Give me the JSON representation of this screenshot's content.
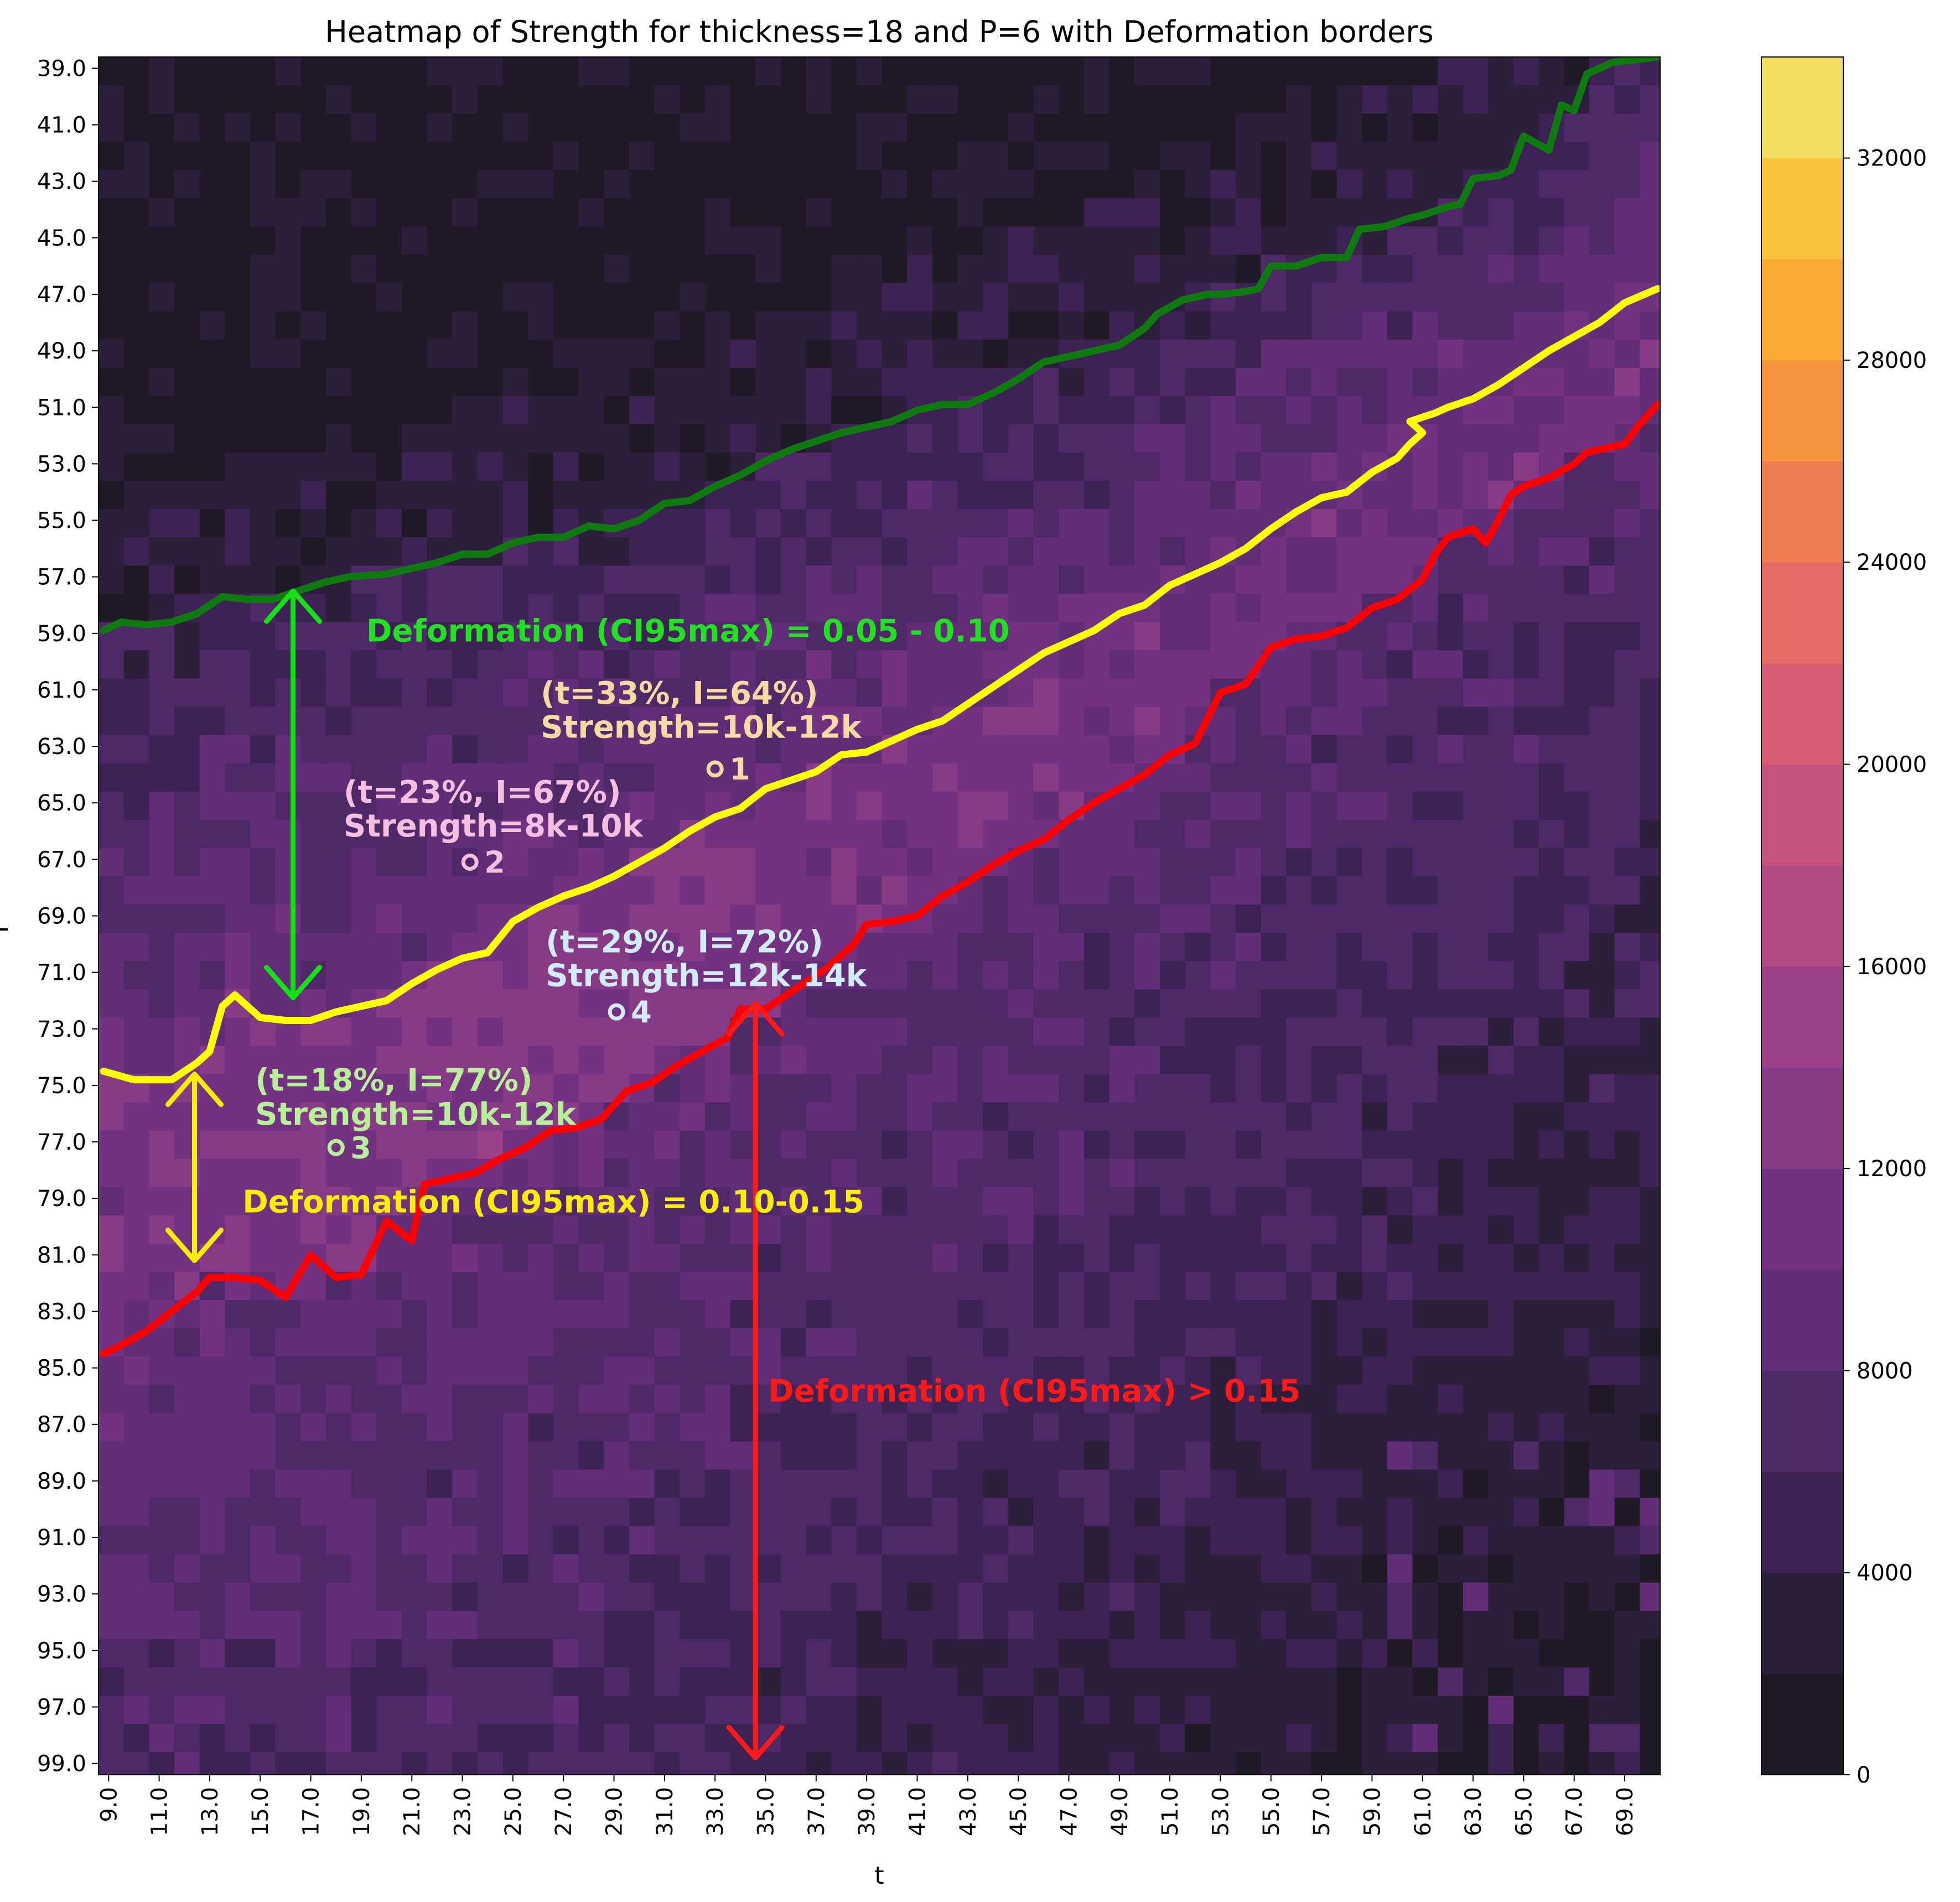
{
  "chart_data": {
    "type": "heatmap",
    "title": "Heatmap of Strength for thickness=18 and P=6 with Deformation borders",
    "xlabel": "t",
    "ylabel": "I",
    "x_ticks": [
      "9.0",
      "11.0",
      "13.0",
      "15.0",
      "17.0",
      "19.0",
      "21.0",
      "23.0",
      "25.0",
      "27.0",
      "29.0",
      "31.0",
      "33.0",
      "35.0",
      "37.0",
      "39.0",
      "41.0",
      "43.0",
      "45.0",
      "47.0",
      "49.0",
      "51.0",
      "53.0",
      "55.0",
      "57.0",
      "59.0",
      "61.0",
      "63.0",
      "65.0",
      "67.0",
      "69.0"
    ],
    "y_ticks": [
      "39.0",
      "41.0",
      "43.0",
      "45.0",
      "47.0",
      "49.0",
      "51.0",
      "53.0",
      "55.0",
      "57.0",
      "59.0",
      "61.0",
      "63.0",
      "65.0",
      "67.0",
      "69.0",
      "71.0",
      "73.0",
      "75.0",
      "77.0",
      "79.0",
      "81.0",
      "83.0",
      "85.0",
      "87.0",
      "89.0",
      "91.0",
      "93.0",
      "95.0",
      "97.0",
      "99.0"
    ],
    "xlim": [
      8.6,
      70.4
    ],
    "ylim": [
      38.6,
      99.4
    ],
    "colorbar": {
      "ticks": [
        "0",
        "4000",
        "8000",
        "12000",
        "16000",
        "20000",
        "24000",
        "28000",
        "32000"
      ],
      "range": [
        0,
        34000
      ],
      "levels": [
        0,
        2000,
        4000,
        6000,
        8000,
        10000,
        12000,
        14000,
        16000,
        18000,
        20000,
        22000,
        24000,
        26000,
        28000,
        30000,
        32000,
        34000
      ],
      "colors": [
        "#1f1a26",
        "#2b1f3b",
        "#3c2353",
        "#4f2868",
        "#612d77",
        "#733281",
        "#873a86",
        "#9c4188",
        "#b24a85",
        "#c6527e",
        "#d85d72",
        "#e66c63",
        "#ef7d52",
        "#f6933d",
        "#f9ab31",
        "#f8c43e",
        "#f3de61",
        "#f0f596"
      ]
    },
    "borders": [
      {
        "name": "green",
        "color": "#0f7a0f",
        "points": [
          [
            8.8,
            58.9
          ],
          [
            9.5,
            58.6
          ],
          [
            10.5,
            58.7
          ],
          [
            11.5,
            58.6
          ],
          [
            12.5,
            58.3
          ],
          [
            13.5,
            57.7
          ],
          [
            14.5,
            57.8
          ],
          [
            15.5,
            57.8
          ],
          [
            16.5,
            57.5
          ],
          [
            17.5,
            57.2
          ],
          [
            18.5,
            57.0
          ],
          [
            20.0,
            56.9
          ],
          [
            21.0,
            56.7
          ],
          [
            22.0,
            56.5
          ],
          [
            23.0,
            56.2
          ],
          [
            24.0,
            56.2
          ],
          [
            25.0,
            55.8
          ],
          [
            26.0,
            55.6
          ],
          [
            27.0,
            55.6
          ],
          [
            28.0,
            55.2
          ],
          [
            29.0,
            55.3
          ],
          [
            30.0,
            55.0
          ],
          [
            31.0,
            54.4
          ],
          [
            32.0,
            54.3
          ],
          [
            33.0,
            53.8
          ],
          [
            34.0,
            53.4
          ],
          [
            35.0,
            52.9
          ],
          [
            36.0,
            52.5
          ],
          [
            37.0,
            52.2
          ],
          [
            38.0,
            51.9
          ],
          [
            39.0,
            51.7
          ],
          [
            40.0,
            51.5
          ],
          [
            41.0,
            51.1
          ],
          [
            42.0,
            50.9
          ],
          [
            43.0,
            50.9
          ],
          [
            44.0,
            50.5
          ],
          [
            45.0,
            50.0
          ],
          [
            46.0,
            49.4
          ],
          [
            47.0,
            49.2
          ],
          [
            48.0,
            49.0
          ],
          [
            49.0,
            48.8
          ],
          [
            50.0,
            48.2
          ],
          [
            50.5,
            47.7
          ],
          [
            51.5,
            47.2
          ],
          [
            52.5,
            47.0
          ],
          [
            53.0,
            47.0
          ],
          [
            54.0,
            46.9
          ],
          [
            54.5,
            46.8
          ],
          [
            55.0,
            46.0
          ],
          [
            56.0,
            46.0
          ],
          [
            57.0,
            45.7
          ],
          [
            58.0,
            45.7
          ],
          [
            58.5,
            44.7
          ],
          [
            59.5,
            44.6
          ],
          [
            60.5,
            44.3
          ],
          [
            61.0,
            44.2
          ],
          [
            62.0,
            43.9
          ],
          [
            62.5,
            43.8
          ],
          [
            63.0,
            42.9
          ],
          [
            64.0,
            42.8
          ],
          [
            64.5,
            42.6
          ],
          [
            65.0,
            41.4
          ],
          [
            66.0,
            41.9
          ],
          [
            66.5,
            40.3
          ],
          [
            67.0,
            40.5
          ],
          [
            67.5,
            39.2
          ],
          [
            68.0,
            39.0
          ],
          [
            68.5,
            38.8
          ],
          [
            70.3,
            38.6
          ]
        ]
      },
      {
        "name": "yellow",
        "color": "#ffff00",
        "points": [
          [
            8.8,
            74.5
          ],
          [
            10.0,
            74.8
          ],
          [
            11.5,
            74.8
          ],
          [
            12.5,
            74.2
          ],
          [
            13.0,
            73.8
          ],
          [
            13.5,
            72.2
          ],
          [
            14.0,
            71.8
          ],
          [
            15.0,
            72.6
          ],
          [
            16.0,
            72.7
          ],
          [
            17.0,
            72.7
          ],
          [
            18.0,
            72.4
          ],
          [
            19.0,
            72.2
          ],
          [
            20.0,
            72.0
          ],
          [
            21.0,
            71.4
          ],
          [
            22.0,
            70.9
          ],
          [
            23.0,
            70.5
          ],
          [
            24.0,
            70.3
          ],
          [
            25.0,
            69.2
          ],
          [
            26.0,
            68.7
          ],
          [
            27.0,
            68.3
          ],
          [
            28.0,
            68.0
          ],
          [
            29.0,
            67.6
          ],
          [
            30.0,
            67.1
          ],
          [
            31.0,
            66.6
          ],
          [
            32.0,
            66.0
          ],
          [
            33.0,
            65.5
          ],
          [
            34.0,
            65.2
          ],
          [
            35.0,
            64.5
          ],
          [
            36.0,
            64.2
          ],
          [
            37.0,
            63.9
          ],
          [
            38.0,
            63.3
          ],
          [
            39.0,
            63.2
          ],
          [
            40.0,
            62.8
          ],
          [
            41.0,
            62.4
          ],
          [
            42.0,
            62.1
          ],
          [
            43.0,
            61.5
          ],
          [
            44.0,
            60.9
          ],
          [
            45.0,
            60.3
          ],
          [
            46.0,
            59.7
          ],
          [
            47.0,
            59.3
          ],
          [
            48.0,
            58.9
          ],
          [
            49.0,
            58.3
          ],
          [
            50.0,
            58.0
          ],
          [
            51.0,
            57.3
          ],
          [
            52.0,
            56.9
          ],
          [
            53.0,
            56.5
          ],
          [
            54.0,
            56.0
          ],
          [
            55.0,
            55.3
          ],
          [
            56.0,
            54.7
          ],
          [
            57.0,
            54.2
          ],
          [
            58.0,
            54.0
          ],
          [
            59.0,
            53.3
          ],
          [
            60.0,
            52.8
          ],
          [
            60.5,
            52.3
          ],
          [
            61.0,
            51.9
          ],
          [
            60.5,
            51.5
          ],
          [
            61.5,
            51.2
          ],
          [
            62.0,
            51.0
          ],
          [
            63.0,
            50.7
          ],
          [
            64.0,
            50.2
          ],
          [
            65.0,
            49.6
          ],
          [
            66.0,
            49.0
          ],
          [
            67.0,
            48.5
          ],
          [
            68.0,
            48.0
          ],
          [
            69.0,
            47.3
          ],
          [
            70.3,
            46.8
          ]
        ]
      },
      {
        "name": "red",
        "color": "#ff0000",
        "points": [
          [
            8.8,
            84.5
          ],
          [
            9.5,
            84.2
          ],
          [
            10.5,
            83.7
          ],
          [
            11.5,
            83.0
          ],
          [
            12.5,
            82.3
          ],
          [
            13.0,
            81.8
          ],
          [
            14.0,
            81.8
          ],
          [
            15.0,
            81.9
          ],
          [
            16.0,
            82.5
          ],
          [
            17.0,
            81.0
          ],
          [
            18.0,
            81.8
          ],
          [
            19.0,
            81.7
          ],
          [
            20.0,
            79.8
          ],
          [
            21.0,
            80.5
          ],
          [
            21.5,
            78.5
          ],
          [
            22.5,
            78.3
          ],
          [
            23.5,
            78.1
          ],
          [
            24.5,
            77.6
          ],
          [
            25.5,
            77.2
          ],
          [
            26.5,
            76.6
          ],
          [
            27.5,
            76.5
          ],
          [
            28.5,
            76.2
          ],
          [
            29.5,
            75.2
          ],
          [
            30.5,
            74.9
          ],
          [
            31.5,
            74.3
          ],
          [
            32.5,
            73.8
          ],
          [
            33.5,
            73.3
          ],
          [
            34.0,
            72.3
          ],
          [
            35.0,
            72.3
          ],
          [
            35.5,
            72.0
          ],
          [
            36.5,
            71.4
          ],
          [
            37.5,
            70.8
          ],
          [
            38.5,
            70.0
          ],
          [
            39.0,
            69.3
          ],
          [
            40.0,
            69.2
          ],
          [
            41.0,
            69.0
          ],
          [
            42.0,
            68.3
          ],
          [
            43.0,
            67.8
          ],
          [
            44.0,
            67.2
          ],
          [
            45.0,
            66.7
          ],
          [
            46.0,
            66.3
          ],
          [
            47.0,
            65.6
          ],
          [
            48.0,
            65.0
          ],
          [
            49.0,
            64.5
          ],
          [
            50.0,
            64.0
          ],
          [
            51.0,
            63.3
          ],
          [
            52.0,
            62.9
          ],
          [
            53.0,
            61.1
          ],
          [
            54.0,
            60.8
          ],
          [
            55.0,
            59.5
          ],
          [
            56.0,
            59.2
          ],
          [
            57.0,
            59.1
          ],
          [
            58.0,
            58.8
          ],
          [
            59.0,
            58.1
          ],
          [
            60.0,
            57.8
          ],
          [
            61.0,
            57.1
          ],
          [
            61.5,
            56.2
          ],
          [
            62.0,
            55.6
          ],
          [
            63.0,
            55.3
          ],
          [
            63.5,
            55.8
          ],
          [
            64.0,
            55.0
          ],
          [
            64.5,
            54.1
          ],
          [
            65.0,
            53.8
          ],
          [
            66.0,
            53.5
          ],
          [
            67.0,
            53.0
          ],
          [
            67.5,
            52.6
          ],
          [
            68.0,
            52.5
          ],
          [
            69.0,
            52.3
          ],
          [
            69.5,
            51.7
          ],
          [
            70.3,
            50.9
          ]
        ]
      }
    ],
    "arrows": [
      {
        "color": "#16e016",
        "x": 16.3,
        "y_from": 57.5,
        "y_to": 71.9
      },
      {
        "color": "#ffee00",
        "x": 12.4,
        "y_from": 74.6,
        "y_to": 81.2
      },
      {
        "color": "#ff1a1a",
        "x": 34.6,
        "y_from": 72.1,
        "y_to": 98.8
      }
    ],
    "annotations": [
      {
        "text": "Deformation (CI95max) = 0.05 - 0.10",
        "color": "#22e022",
        "x": 19.2,
        "y": 58.9
      },
      {
        "text": "Deformation (CI95max) = 0.10-0.15",
        "color": "#ffee00",
        "x": 14.3,
        "y": 79.1
      },
      {
        "text": "Deformation (CI95max) > 0.15",
        "color": "#ff1a1a",
        "x": 35.1,
        "y": 85.8
      },
      {
        "text": "(t=33%, I=64%)",
        "color": "#f7d9a3",
        "x": 26.1,
        "y": 61.1
      },
      {
        "text": "Strength=10k-12k",
        "color": "#f7d9a3",
        "x": 26.1,
        "y": 62.3
      },
      {
        "text": "(t=23%, I=67%)",
        "color": "#f5c0e0",
        "x": 18.3,
        "y": 64.6
      },
      {
        "text": "Strength=8k-10k",
        "color": "#f5c0e0",
        "x": 18.3,
        "y": 65.8
      },
      {
        "text": "(t=29%, I=72%)",
        "color": "#d2ecff",
        "x": 26.3,
        "y": 69.9
      },
      {
        "text": "Strength=12k-14k",
        "color": "#d2ecff",
        "x": 26.3,
        "y": 71.1
      },
      {
        "text": "(t=18%, I=77%)",
        "color": "#b8f09a",
        "x": 14.8,
        "y": 74.8
      },
      {
        "text": "Strength=10k-12k",
        "color": "#b8f09a",
        "x": 14.8,
        "y": 76.0
      }
    ],
    "points": [
      {
        "label": "1",
        "t": 33.0,
        "I": 63.8,
        "color": "#f7d9a3"
      },
      {
        "label": "2",
        "t": 23.3,
        "I": 67.1,
        "color": "#f5c0e0"
      },
      {
        "label": "3",
        "t": 18.0,
        "I": 77.2,
        "color": "#b8f09a"
      },
      {
        "label": "4",
        "t": 29.1,
        "I": 72.4,
        "color": "#d2ecff"
      }
    ]
  }
}
